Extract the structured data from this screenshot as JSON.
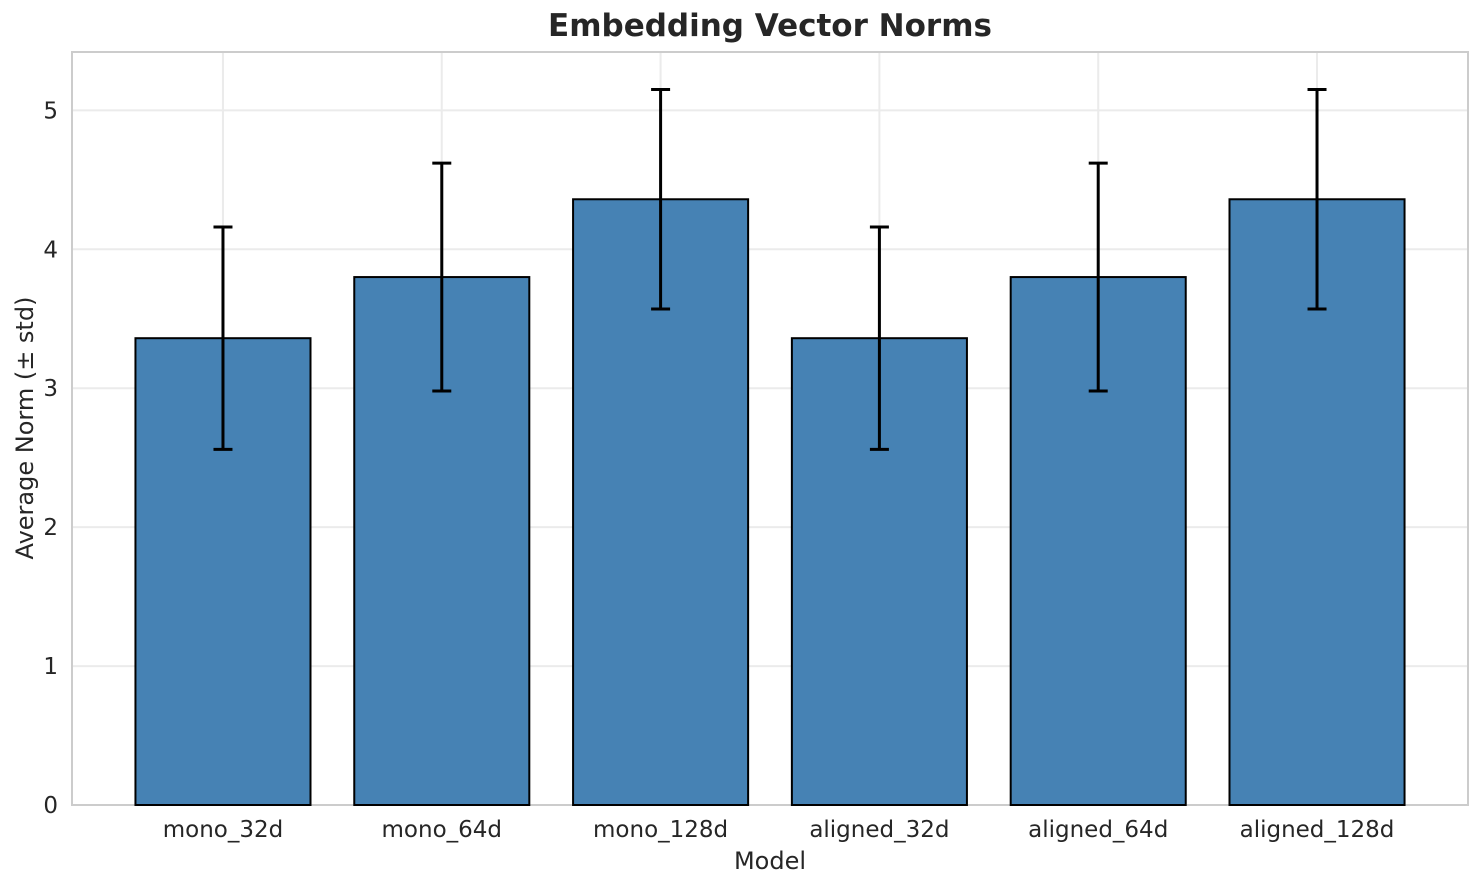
{
  "chart_data": {
    "type": "bar",
    "title": "Embedding Vector Norms",
    "xlabel": "Model",
    "ylabel": "Average Norm (± std)",
    "categories": [
      "mono_32d",
      "mono_64d",
      "mono_128d",
      "aligned_32d",
      "aligned_64d",
      "aligned_128d"
    ],
    "series": [
      {
        "name": "Average Norm",
        "values": [
          3.36,
          3.8,
          4.36,
          3.36,
          3.8,
          4.36
        ],
        "errors": [
          0.8,
          0.82,
          0.79,
          0.8,
          0.82,
          0.79
        ]
      }
    ],
    "yticks": [
      0,
      1,
      2,
      3,
      4,
      5
    ],
    "ylim": [
      0,
      5.42
    ],
    "grid": true,
    "legend_position": "none",
    "colors": {
      "bar_fill": "#4682B4",
      "bar_edge": "#000000",
      "error_bar": "#000000",
      "grid_line": "#ebebeb",
      "spine": "#cccccc",
      "text": "#262626",
      "background": "#ffffff"
    }
  }
}
